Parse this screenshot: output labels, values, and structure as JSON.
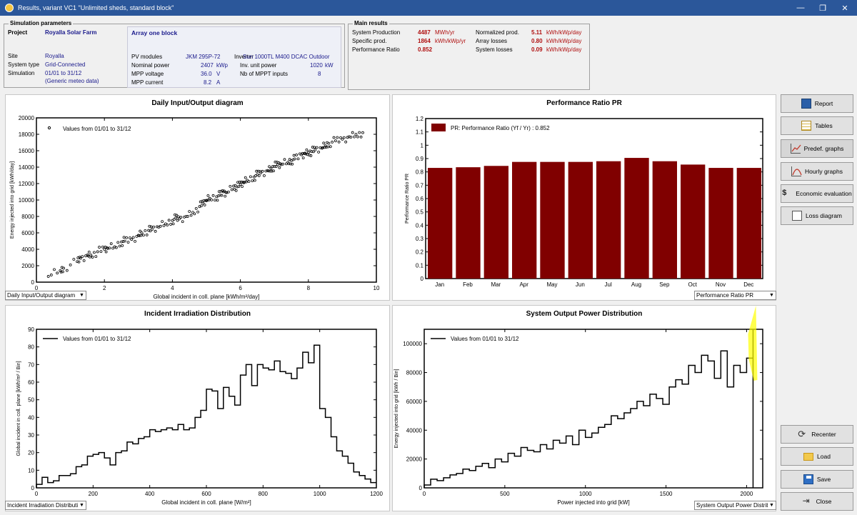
{
  "window": {
    "title": "Results, variant VC1  \"Unlimited sheds, standard block\"",
    "minimize": "—",
    "restore": "❐",
    "close": "✕"
  },
  "sim": {
    "header": "Simulation parameters",
    "project_label": "Project",
    "project_value": "Royalla Solar Farm",
    "array_title": "Array one block",
    "site_label": "Site",
    "site_value": "Royalla",
    "systype_label": "System type",
    "systype_value": "Grid-Connected",
    "simulation_label": "Simulation",
    "simulation_value": "01/01 to 31/12",
    "meteo": "(Generic meteo data)",
    "pv_label": "PV modules",
    "pv_value": "JKM 295P-72",
    "inverter_label": "Inverter",
    "inverter_value": "Sun 1000TL M400 DCAC Outdoor",
    "nominal_label": "Nominal power",
    "nominal_value": "2407",
    "nominal_unit": "kWp",
    "invunit_label": "Inv. unit power",
    "invunit_value": "1020",
    "invunit_unit": "kW",
    "mppv_label": "MPP voltage",
    "mppv_value": "36.0",
    "mppv_unit": "V",
    "mppt_label": "Nb of MPPT inputs",
    "mppt_value": "8",
    "mppc_label": "MPP current",
    "mppc_value": "8.2",
    "mppc_unit": "A"
  },
  "main": {
    "header": "Main results",
    "sysprod_label": "System Production",
    "sysprod_value": "4487",
    "sysprod_unit": "MWh/yr",
    "specprod_label": "Specific prod.",
    "specprod_value": "1864",
    "specprod_unit": "kWh/kWp/yr",
    "pr_label": "Performance Ratio",
    "pr_value": "0.852",
    "normprod_label": "Normalized prod.",
    "normprod_value": "5.11",
    "normprod_unit": "kWh/kWp/day",
    "arrloss_label": "Array losses",
    "arrloss_value": "0.80",
    "arrloss_unit": "kWh/kWp/day",
    "sysloss_label": "System losses",
    "sysloss_value": "0.09",
    "sysloss_unit": "kWh/kWp/day"
  },
  "buttons": {
    "report": "Report",
    "tables": "Tables",
    "predef": "Predef. graphs",
    "hourly": "Hourly graphs",
    "economic": "Economic evaluation",
    "loss": "Loss diagram",
    "recenter": "Recenter",
    "load": "Load",
    "save": "Save",
    "close": "Close"
  },
  "combos": {
    "c1": "Daily Input/Output diagram",
    "c2": "Performance Ratio PR",
    "c3": "Incident Irradiation Distributi",
    "c4": "System Output Power Distrib"
  },
  "chart_data": [
    {
      "type": "scatter",
      "title": "Daily Input/Output diagram",
      "xlabel": "Global incident in coll. plane [kWh/m²/day]",
      "ylabel": "Energy injected into grid [kWh/day]",
      "legend": "Values from 01/01 to 31/12",
      "xlim": [
        0,
        10
      ],
      "ylim": [
        0,
        20000
      ],
      "xticks": [
        0,
        2,
        4,
        6,
        8,
        10
      ],
      "yticks": [
        0,
        2000,
        4000,
        6000,
        8000,
        10000,
        12000,
        14000,
        16000,
        18000,
        20000
      ],
      "x": [
        0.35,
        0.7,
        0.8,
        1.2,
        1.3,
        1.5,
        1.6,
        1.8,
        2.0,
        2.1,
        2.3,
        2.5,
        2.6,
        2.8,
        3.0,
        3.1,
        3.3,
        3.4,
        3.6,
        3.8,
        4.0,
        4.1,
        4.2,
        4.4,
        4.6,
        4.8,
        4.9,
        5.0,
        5.1,
        5.3,
        5.4,
        5.5,
        5.6,
        5.8,
        5.9,
        6.0,
        6.1,
        6.2,
        6.4,
        6.5,
        6.6,
        6.8,
        6.9,
        7.0,
        7.1,
        7.2,
        7.4,
        7.5,
        7.6,
        7.8,
        7.9,
        8.0,
        8.1,
        8.2,
        8.4,
        8.5,
        8.6,
        8.8,
        9.0,
        9.2,
        9.4,
        9.6
      ],
      "y": [
        700,
        1400,
        1700,
        2500,
        2900,
        3300,
        3300,
        3700,
        4000,
        4100,
        4300,
        4900,
        5000,
        5200,
        5700,
        6000,
        6300,
        6400,
        6700,
        7100,
        7500,
        7800,
        7700,
        8000,
        8500,
        9200,
        9600,
        9900,
        10200,
        10400,
        10600,
        11000,
        10900,
        11700,
        11600,
        11900,
        12100,
        12400,
        12800,
        13100,
        13300,
        13600,
        13800,
        14100,
        14300,
        14300,
        14600,
        14800,
        15000,
        15500,
        15700,
        15800,
        15900,
        16100,
        16300,
        16600,
        16900,
        17200,
        17400,
        17700,
        18000,
        18200
      ],
      "marker_count": "~365"
    },
    {
      "type": "bar",
      "title": "Performance Ratio PR",
      "ylabel": "Performance Ratio PR",
      "legend": "PR: Performance Ratio (Yf / Yr) :  0.852",
      "categories": [
        "Jan",
        "Feb",
        "Mar",
        "Apr",
        "May",
        "Jun",
        "Jul",
        "Aug",
        "Sep",
        "Oct",
        "Nov",
        "Dec"
      ],
      "values": [
        0.83,
        0.835,
        0.845,
        0.875,
        0.875,
        0.875,
        0.88,
        0.905,
        0.88,
        0.855,
        0.83,
        0.83
      ],
      "ylim": [
        0,
        1.2
      ],
      "yticks": [
        0,
        0.1,
        0.2,
        0.3,
        0.4,
        0.5,
        0.6,
        0.7,
        0.8,
        0.9,
        1.0,
        1.1,
        1.2
      ],
      "ytick_labels": [
        "0",
        "0.1",
        "0.2",
        "0.3",
        "0.4",
        "0.5",
        "0.6",
        "0.7",
        "0.8",
        "0.9",
        "1",
        "1.1",
        "1.2"
      ],
      "color": "#800000"
    },
    {
      "type": "line",
      "title": "Incident Irradiation Distribution",
      "xlabel": "Global incident in coll. plane [W/m²]",
      "ylabel": "Global incident in coll. plane [kWh/m² / Bin]",
      "legend": "Values from 01/01 to 31/12",
      "xlim": [
        0,
        1200
      ],
      "ylim": [
        0,
        90
      ],
      "xticks": [
        0,
        200,
        400,
        600,
        800,
        1000,
        1200
      ],
      "yticks": [
        0,
        10,
        20,
        30,
        40,
        50,
        60,
        70,
        80,
        90
      ],
      "x": [
        0,
        20,
        40,
        60,
        80,
        100,
        120,
        140,
        160,
        180,
        200,
        220,
        240,
        260,
        280,
        300,
        320,
        340,
        360,
        380,
        400,
        420,
        440,
        460,
        480,
        500,
        520,
        540,
        560,
        580,
        600,
        620,
        640,
        660,
        680,
        700,
        720,
        740,
        760,
        780,
        800,
        820,
        840,
        860,
        880,
        900,
        920,
        940,
        960,
        980,
        1000,
        1020,
        1040,
        1060,
        1080,
        1100,
        1120,
        1140,
        1160,
        1180
      ],
      "values": [
        2,
        6,
        3,
        4,
        7,
        7,
        8,
        12,
        13,
        18,
        19,
        20,
        17,
        13,
        20,
        21,
        26,
        25,
        28,
        29,
        33,
        32,
        33,
        34,
        33,
        36,
        33,
        34,
        40,
        44,
        56,
        55,
        45,
        57,
        52,
        47,
        64,
        70,
        58,
        70,
        68,
        67,
        72,
        66,
        65,
        62,
        68,
        77,
        71,
        81,
        45,
        40,
        29,
        21,
        18,
        14,
        9,
        7,
        5,
        3
      ],
      "interpolation": "step"
    },
    {
      "type": "line",
      "title": "System Output Power Distribution",
      "xlabel": "Power injected into grid [kW]",
      "ylabel": "Energy injected into grid [kWh / Bin]",
      "legend": "Values from 01/01 to 31/12",
      "xlim": [
        0,
        2100
      ],
      "ylim": [
        0,
        110000
      ],
      "xticks": [
        0,
        500,
        1000,
        1500,
        2000
      ],
      "yticks": [
        0,
        20000,
        40000,
        60000,
        80000,
        100000
      ],
      "x": [
        0,
        40,
        80,
        120,
        160,
        200,
        240,
        280,
        320,
        360,
        400,
        440,
        480,
        520,
        560,
        600,
        640,
        680,
        720,
        760,
        800,
        840,
        880,
        920,
        960,
        1000,
        1040,
        1080,
        1120,
        1160,
        1200,
        1240,
        1280,
        1320,
        1360,
        1400,
        1440,
        1480,
        1520,
        1560,
        1600,
        1640,
        1680,
        1720,
        1760,
        1800,
        1840,
        1880,
        1920,
        1960,
        2000
      ],
      "values": [
        2000,
        6000,
        5000,
        7000,
        9000,
        10000,
        13000,
        12000,
        15000,
        17000,
        14000,
        20000,
        18000,
        24000,
        22000,
        28000,
        26000,
        25000,
        30000,
        27000,
        33000,
        31000,
        36000,
        30000,
        40000,
        35000,
        38000,
        42000,
        44000,
        50000,
        48000,
        52000,
        55000,
        60000,
        57000,
        65000,
        62000,
        58000,
        70000,
        75000,
        72000,
        85000,
        80000,
        92000,
        88000,
        76000,
        95000,
        70000,
        85000,
        80000,
        90000
      ],
      "interpolation": "step",
      "marker_line_x": 2040
    }
  ]
}
